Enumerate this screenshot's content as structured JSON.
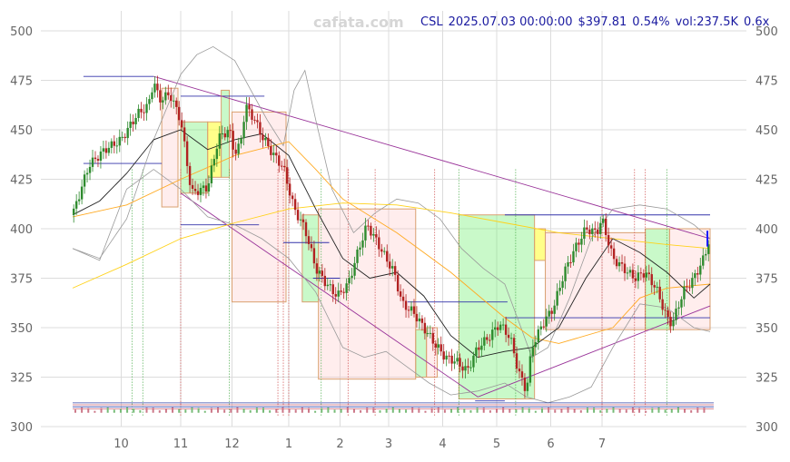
{
  "watermark": "cafata.com",
  "header": {
    "ticker": "CSL",
    "datetime": "2025.07.03 00:00:00",
    "price": "$397.81",
    "change": "0.54%",
    "volume": "vol:237.5K",
    "ratio": "0.6x"
  },
  "chart_data": {
    "type": "candlestick",
    "title": "",
    "ylim": [
      300,
      510
    ],
    "y_ticks": [
      300,
      325,
      350,
      375,
      400,
      425,
      450,
      475,
      500
    ],
    "x_ticks": [
      {
        "label": "10",
        "m": 0.9
      },
      {
        "label": "11",
        "m": 2.0
      },
      {
        "label": "12",
        "m": 2.95
      },
      {
        "label": "1",
        "m": 4.0
      },
      {
        "label": "2",
        "m": 4.95
      },
      {
        "label": "3",
        "m": 5.85
      },
      {
        "label": "4",
        "m": 6.85
      },
      {
        "label": "5",
        "m": 7.85
      },
      {
        "label": "6",
        "m": 8.85
      },
      {
        "label": "7",
        "m": 9.8
      }
    ],
    "price_path": [
      [
        0.0,
        407
      ],
      [
        0.3,
        432
      ],
      [
        0.6,
        440
      ],
      [
        0.9,
        445
      ],
      [
        1.2,
        458
      ],
      [
        1.4,
        462
      ],
      [
        1.5,
        475
      ],
      [
        1.6,
        465
      ],
      [
        1.8,
        468
      ],
      [
        2.0,
        455
      ],
      [
        2.2,
        418
      ],
      [
        2.5,
        421
      ],
      [
        2.7,
        446
      ],
      [
        2.9,
        450
      ],
      [
        3.0,
        438
      ],
      [
        3.1,
        442
      ],
      [
        3.2,
        462
      ],
      [
        3.35,
        456
      ],
      [
        3.5,
        447
      ],
      [
        3.7,
        438
      ],
      [
        3.9,
        431
      ],
      [
        4.1,
        410
      ],
      [
        4.3,
        400
      ],
      [
        4.5,
        380
      ],
      [
        4.7,
        372
      ],
      [
        4.9,
        366
      ],
      [
        5.1,
        372
      ],
      [
        5.3,
        390
      ],
      [
        5.45,
        402
      ],
      [
        5.6,
        395
      ],
      [
        5.8,
        385
      ],
      [
        5.95,
        378
      ],
      [
        6.1,
        362
      ],
      [
        6.3,
        358
      ],
      [
        6.5,
        350
      ],
      [
        6.7,
        342
      ],
      [
        6.9,
        335
      ],
      [
        7.1,
        333
      ],
      [
        7.3,
        328
      ],
      [
        7.5,
        340
      ],
      [
        7.7,
        345
      ],
      [
        7.9,
        352
      ],
      [
        8.1,
        345
      ],
      [
        8.25,
        328
      ],
      [
        8.4,
        318
      ],
      [
        8.5,
        340
      ],
      [
        8.7,
        352
      ],
      [
        8.9,
        360
      ],
      [
        9.1,
        378
      ],
      [
        9.3,
        390
      ],
      [
        9.5,
        400
      ],
      [
        9.7,
        398
      ],
      [
        9.8,
        405
      ],
      [
        9.9,
        395
      ],
      [
        10.0,
        385
      ],
      [
        10.2,
        380
      ],
      [
        10.4,
        375
      ],
      [
        10.6,
        378
      ],
      [
        10.8,
        370
      ],
      [
        11.0,
        355
      ],
      [
        11.1,
        352
      ],
      [
        11.3,
        368
      ],
      [
        11.5,
        375
      ],
      [
        11.7,
        386
      ],
      [
        11.8,
        397
      ]
    ],
    "sma_short": [
      [
        0.0,
        407
      ],
      [
        0.5,
        414
      ],
      [
        1.0,
        428
      ],
      [
        1.5,
        445
      ],
      [
        2.0,
        450
      ],
      [
        2.5,
        440
      ],
      [
        3.0,
        445
      ],
      [
        3.5,
        448
      ],
      [
        4.0,
        437
      ],
      [
        4.5,
        410
      ],
      [
        5.0,
        385
      ],
      [
        5.5,
        375
      ],
      [
        6.0,
        378
      ],
      [
        6.5,
        366
      ],
      [
        7.0,
        346
      ],
      [
        7.5,
        335
      ],
      [
        8.0,
        338
      ],
      [
        8.5,
        340
      ],
      [
        9.0,
        350
      ],
      [
        9.5,
        375
      ],
      [
        10.0,
        395
      ],
      [
        10.5,
        388
      ],
      [
        11.0,
        378
      ],
      [
        11.5,
        365
      ],
      [
        11.8,
        372
      ]
    ],
    "sma_mid": [
      [
        0.0,
        406
      ],
      [
        1.0,
        412
      ],
      [
        2.0,
        425
      ],
      [
        3.0,
        437
      ],
      [
        4.0,
        444
      ],
      [
        4.5,
        430
      ],
      [
        5.0,
        415
      ],
      [
        6.0,
        398
      ],
      [
        7.0,
        378
      ],
      [
        8.0,
        355
      ],
      [
        8.5,
        345
      ],
      [
        9.0,
        342
      ],
      [
        10.0,
        350
      ],
      [
        10.5,
        365
      ],
      [
        11.0,
        370
      ],
      [
        11.8,
        372
      ]
    ],
    "sma_long": [
      [
        0.0,
        370
      ],
      [
        1.0,
        382
      ],
      [
        2.0,
        395
      ],
      [
        3.0,
        403
      ],
      [
        4.0,
        410
      ],
      [
        5.0,
        413
      ],
      [
        6.0,
        412
      ],
      [
        7.0,
        408
      ],
      [
        8.0,
        403
      ],
      [
        9.0,
        398
      ],
      [
        10.0,
        395
      ],
      [
        11.0,
        392
      ],
      [
        11.8,
        390
      ]
    ],
    "boll_upper": [
      [
        0.0,
        390
      ],
      [
        0.5,
        385
      ],
      [
        1.0,
        405
      ],
      [
        1.5,
        445
      ],
      [
        2.0,
        478
      ],
      [
        2.3,
        488
      ],
      [
        2.6,
        492
      ],
      [
        3.0,
        485
      ],
      [
        3.3,
        470
      ],
      [
        3.6,
        455
      ],
      [
        3.9,
        442
      ],
      [
        4.1,
        470
      ],
      [
        4.3,
        480
      ],
      [
        4.5,
        455
      ],
      [
        4.8,
        420
      ],
      [
        5.2,
        398
      ],
      [
        5.6,
        408
      ],
      [
        6.0,
        415
      ],
      [
        6.4,
        413
      ],
      [
        6.8,
        405
      ],
      [
        7.2,
        390
      ],
      [
        7.6,
        380
      ],
      [
        8.0,
        372
      ],
      [
        8.3,
        350
      ],
      [
        8.5,
        335
      ],
      [
        8.8,
        340
      ],
      [
        9.2,
        365
      ],
      [
        9.6,
        395
      ],
      [
        10.0,
        410
      ],
      [
        10.5,
        412
      ],
      [
        11.0,
        410
      ],
      [
        11.5,
        402
      ],
      [
        11.8,
        395
      ]
    ],
    "boll_lower": [
      [
        0.0,
        390
      ],
      [
        0.5,
        384
      ],
      [
        1.0,
        420
      ],
      [
        1.5,
        430
      ],
      [
        2.0,
        420
      ],
      [
        2.5,
        406
      ],
      [
        3.0,
        402
      ],
      [
        3.5,
        395
      ],
      [
        4.0,
        385
      ],
      [
        4.5,
        368
      ],
      [
        5.0,
        340
      ],
      [
        5.4,
        335
      ],
      [
        5.8,
        338
      ],
      [
        6.2,
        330
      ],
      [
        6.6,
        322
      ],
      [
        7.0,
        316
      ],
      [
        7.5,
        318
      ],
      [
        8.0,
        322
      ],
      [
        8.4,
        315
      ],
      [
        8.8,
        312
      ],
      [
        9.2,
        315
      ],
      [
        9.6,
        320
      ],
      [
        10.0,
        340
      ],
      [
        10.5,
        362
      ],
      [
        11.0,
        360
      ],
      [
        11.5,
        350
      ],
      [
        11.8,
        348
      ]
    ],
    "boxes": [
      {
        "m0": 1.65,
        "m1": 1.95,
        "low": 411,
        "high": 471,
        "color": "red"
      },
      {
        "m0": 2.0,
        "m1": 2.5,
        "low": 418,
        "high": 454,
        "color": "green"
      },
      {
        "m0": 2.5,
        "m1": 2.75,
        "low": 426,
        "high": 454,
        "color": "yellow"
      },
      {
        "m0": 2.75,
        "m1": 2.9,
        "low": 426,
        "high": 470,
        "color": "green"
      },
      {
        "m0": 2.95,
        "m1": 3.95,
        "low": 363,
        "high": 459,
        "color": "red"
      },
      {
        "m0": 4.25,
        "m1": 4.55,
        "low": 363,
        "high": 407,
        "color": "green"
      },
      {
        "m0": 4.55,
        "m1": 6.35,
        "low": 324,
        "high": 410,
        "color": "red"
      },
      {
        "m0": 6.35,
        "m1": 6.55,
        "low": 325,
        "high": 349,
        "color": "green"
      },
      {
        "m0": 6.55,
        "m1": 6.75,
        "low": 325,
        "high": 350,
        "color": "red"
      },
      {
        "m0": 7.15,
        "m1": 8.55,
        "low": 314,
        "high": 407,
        "color": "green"
      },
      {
        "m0": 8.55,
        "m1": 8.75,
        "low": 384,
        "high": 400,
        "color": "yellow"
      },
      {
        "m0": 8.75,
        "m1": 10.6,
        "low": 349,
        "high": 398,
        "color": "red"
      },
      {
        "m0": 10.6,
        "m1": 11.05,
        "low": 349,
        "high": 400,
        "color": "green"
      },
      {
        "m0": 11.05,
        "m1": 11.8,
        "low": 349,
        "high": 400,
        "color": "red"
      }
    ],
    "h_levels": [
      {
        "m0": 0.2,
        "m1": 1.5,
        "y": 477,
        "color": "#3333aa"
      },
      {
        "m0": 0.2,
        "m1": 1.65,
        "y": 433,
        "color": "#3333aa"
      },
      {
        "m0": 2.0,
        "m1": 3.55,
        "y": 467,
        "color": "#3333aa"
      },
      {
        "m0": 2.0,
        "m1": 3.45,
        "y": 402,
        "color": "#3333aa"
      },
      {
        "m0": 3.9,
        "m1": 4.75,
        "y": 393,
        "color": "#3333aa"
      },
      {
        "m0": 4.45,
        "m1": 4.95,
        "y": 375,
        "color": "#3333aa"
      },
      {
        "m0": 6.2,
        "m1": 8.05,
        "y": 363,
        "color": "#3333aa"
      },
      {
        "m0": 8.0,
        "m1": 11.8,
        "y": 407,
        "color": "#3333aa"
      },
      {
        "m0": 8.0,
        "m1": 11.8,
        "y": 355,
        "color": "#3333aa"
      },
      {
        "m0": 7.45,
        "m1": 8.0,
        "y": 313,
        "color": "#3333aa"
      }
    ],
    "trendlines": [
      {
        "x0": 1.5,
        "y0": 477,
        "x1": 11.8,
        "y1": 395,
        "color": "#993399"
      },
      {
        "x0": 2.0,
        "y0": 418,
        "x1": 7.5,
        "y1": 315,
        "color": "#993399"
      },
      {
        "x0": 7.5,
        "y0": 315,
        "x1": 11.8,
        "y1": 361,
        "color": "#993399"
      }
    ],
    "markers": [
      {
        "m": 1.1,
        "color": "green"
      },
      {
        "m": 1.3,
        "color": "green"
      },
      {
        "m": 2.0,
        "color": "red"
      },
      {
        "m": 2.9,
        "color": "green"
      },
      {
        "m": 3.8,
        "color": "red"
      },
      {
        "m": 3.9,
        "color": "red"
      },
      {
        "m": 4.0,
        "color": "red"
      },
      {
        "m": 4.6,
        "color": "green"
      },
      {
        "m": 5.1,
        "color": "red"
      },
      {
        "m": 5.6,
        "color": "red"
      },
      {
        "m": 6.7,
        "color": "red"
      },
      {
        "m": 7.15,
        "color": "green"
      },
      {
        "m": 8.2,
        "color": "green"
      },
      {
        "m": 9.8,
        "color": "red"
      },
      {
        "m": 10.4,
        "color": "red"
      },
      {
        "m": 10.6,
        "color": "red"
      },
      {
        "m": 11.0,
        "color": "green"
      }
    ],
    "volume_levels": [
      312,
      311,
      310,
      309
    ]
  }
}
